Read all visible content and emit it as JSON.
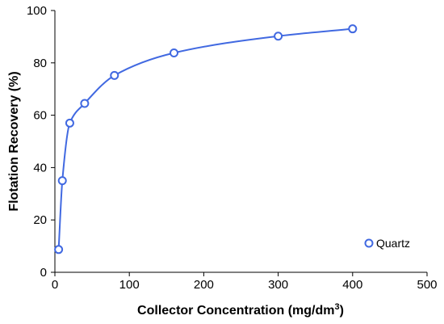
{
  "chart_data": {
    "type": "scatter",
    "xlabel": "Collector Concentration (mg/dm",
    "xlabel_sup": "3",
    "xlabel_end": ")",
    "ylabel": "Flotation Recovery (%)",
    "xlim": [
      0,
      500
    ],
    "ylim": [
      0,
      100
    ],
    "x_ticks": [
      0,
      100,
      200,
      300,
      400,
      500
    ],
    "y_ticks": [
      0,
      20,
      40,
      60,
      80,
      100
    ],
    "grid": false,
    "legend_position": "bottom-right",
    "series": [
      {
        "name": "Quartz",
        "color": "#4169e1",
        "marker": "open-circle",
        "trendline": "smooth",
        "x": [
          5,
          10,
          20,
          40,
          80,
          160,
          300,
          400
        ],
        "y": [
          8.7,
          35,
          57,
          64.5,
          75.2,
          83.8,
          90.2,
          93
        ]
      }
    ]
  }
}
